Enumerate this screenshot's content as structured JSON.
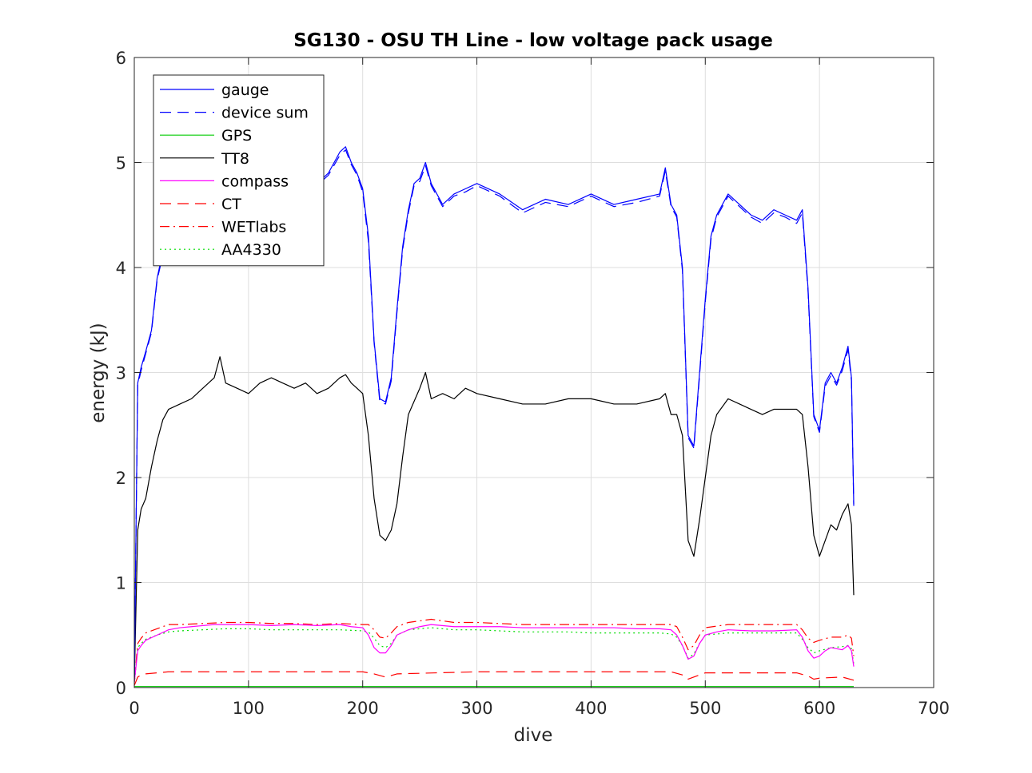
{
  "chart_data": {
    "type": "line",
    "title": "SG130 - OSU TH Line - low voltage pack usage",
    "xlabel": "dive",
    "ylabel": "energy (kJ)",
    "xlim": [
      0,
      700
    ],
    "ylim": [
      0,
      6
    ],
    "xticks": [
      0,
      100,
      200,
      300,
      400,
      500,
      600,
      700
    ],
    "yticks": [
      0,
      1,
      2,
      3,
      4,
      5,
      6
    ],
    "xtick_labels": [
      "0",
      "100",
      "200",
      "300",
      "400",
      "500",
      "600",
      "700"
    ],
    "ytick_labels": [
      "0",
      "1",
      "2",
      "3",
      "4",
      "5",
      "6"
    ],
    "grid": true,
    "legend_position": "top-left",
    "series": [
      {
        "name": "gauge",
        "color": "#0000ff",
        "dash": "solid",
        "x": [
          0,
          3,
          6,
          10,
          15,
          20,
          25,
          30,
          40,
          50,
          60,
          70,
          80,
          90,
          100,
          110,
          120,
          130,
          140,
          150,
          160,
          170,
          180,
          185,
          190,
          195,
          200,
          205,
          210,
          215,
          220,
          225,
          230,
          235,
          240,
          245,
          250,
          255,
          260,
          270,
          280,
          290,
          300,
          320,
          340,
          360,
          380,
          400,
          420,
          440,
          460,
          465,
          470,
          475,
          480,
          485,
          490,
          495,
          500,
          505,
          510,
          520,
          530,
          540,
          550,
          560,
          570,
          580,
          585,
          590,
          595,
          600,
          605,
          610,
          615,
          620,
          625,
          628,
          630
        ],
        "y": [
          0.1,
          2.9,
          3.05,
          3.2,
          3.4,
          3.9,
          4.15,
          4.35,
          4.45,
          4.5,
          4.6,
          4.75,
          4.7,
          4.6,
          4.65,
          4.75,
          4.7,
          4.6,
          4.7,
          4.65,
          4.8,
          4.9,
          5.1,
          5.15,
          5.0,
          4.9,
          4.75,
          4.3,
          3.3,
          2.75,
          2.72,
          2.95,
          3.6,
          4.2,
          4.55,
          4.8,
          4.85,
          5.0,
          4.8,
          4.6,
          4.7,
          4.75,
          4.8,
          4.7,
          4.55,
          4.65,
          4.6,
          4.7,
          4.6,
          4.65,
          4.7,
          4.95,
          4.6,
          4.5,
          4.0,
          2.4,
          2.3,
          3.0,
          3.7,
          4.3,
          4.5,
          4.7,
          4.6,
          4.5,
          4.45,
          4.55,
          4.5,
          4.45,
          4.55,
          3.8,
          2.6,
          2.45,
          2.9,
          3.0,
          2.9,
          3.05,
          3.25,
          2.95,
          1.75
        ]
      },
      {
        "name": "device sum",
        "color": "#0000ff",
        "dash": "long-dash",
        "x": [
          0,
          3,
          6,
          10,
          15,
          20,
          25,
          30,
          40,
          50,
          60,
          70,
          80,
          90,
          100,
          110,
          120,
          130,
          140,
          150,
          160,
          170,
          180,
          185,
          190,
          195,
          200,
          205,
          210,
          215,
          220,
          225,
          230,
          235,
          240,
          245,
          250,
          255,
          260,
          270,
          280,
          290,
          300,
          320,
          340,
          360,
          380,
          400,
          420,
          440,
          460,
          465,
          470,
          475,
          480,
          485,
          490,
          495,
          500,
          505,
          510,
          520,
          530,
          540,
          550,
          560,
          570,
          580,
          585,
          590,
          595,
          600,
          605,
          610,
          615,
          620,
          625,
          628,
          630
        ],
        "y": [
          0.1,
          2.88,
          3.02,
          3.18,
          3.38,
          3.88,
          4.12,
          4.33,
          4.43,
          4.48,
          4.58,
          4.72,
          4.68,
          4.58,
          4.62,
          4.72,
          4.68,
          4.58,
          4.68,
          4.62,
          4.78,
          4.88,
          5.07,
          5.12,
          4.98,
          4.88,
          4.72,
          4.25,
          3.28,
          2.72,
          2.7,
          2.92,
          3.57,
          4.17,
          4.52,
          4.78,
          4.82,
          4.97,
          4.78,
          4.58,
          4.68,
          4.72,
          4.78,
          4.68,
          4.52,
          4.62,
          4.58,
          4.68,
          4.58,
          4.62,
          4.68,
          4.92,
          4.58,
          4.48,
          3.97,
          2.38,
          2.28,
          2.97,
          3.67,
          4.27,
          4.48,
          4.68,
          4.58,
          4.48,
          4.42,
          4.52,
          4.48,
          4.42,
          4.52,
          3.77,
          2.58,
          2.43,
          2.87,
          2.97,
          2.88,
          3.02,
          3.22,
          2.92,
          1.73
        ]
      },
      {
        "name": "GPS",
        "color": "#00cc00",
        "dash": "solid",
        "x": [
          0,
          100,
          200,
          300,
          400,
          500,
          600,
          630
        ],
        "y": [
          0.01,
          0.01,
          0.01,
          0.01,
          0.01,
          0.01,
          0.01,
          0.01
        ]
      },
      {
        "name": "TT8",
        "color": "#000000",
        "dash": "solid",
        "x": [
          0,
          3,
          6,
          10,
          15,
          20,
          25,
          30,
          40,
          50,
          60,
          70,
          75,
          80,
          90,
          100,
          110,
          120,
          130,
          140,
          150,
          160,
          170,
          180,
          185,
          190,
          195,
          200,
          205,
          210,
          215,
          220,
          225,
          230,
          235,
          240,
          250,
          255,
          260,
          270,
          280,
          290,
          300,
          320,
          340,
          360,
          380,
          400,
          420,
          440,
          460,
          465,
          470,
          475,
          480,
          485,
          490,
          495,
          500,
          505,
          510,
          520,
          530,
          540,
          550,
          560,
          570,
          580,
          585,
          590,
          595,
          600,
          605,
          610,
          615,
          620,
          625,
          628,
          630
        ],
        "y": [
          0.05,
          1.5,
          1.7,
          1.8,
          2.1,
          2.35,
          2.55,
          2.65,
          2.7,
          2.75,
          2.85,
          2.95,
          3.15,
          2.9,
          2.85,
          2.8,
          2.9,
          2.95,
          2.9,
          2.85,
          2.9,
          2.8,
          2.85,
          2.95,
          2.98,
          2.9,
          2.85,
          2.8,
          2.4,
          1.8,
          1.45,
          1.4,
          1.5,
          1.75,
          2.2,
          2.6,
          2.85,
          3.0,
          2.75,
          2.8,
          2.75,
          2.85,
          2.8,
          2.75,
          2.7,
          2.7,
          2.75,
          2.75,
          2.7,
          2.7,
          2.75,
          2.8,
          2.6,
          2.6,
          2.4,
          1.4,
          1.25,
          1.6,
          2.0,
          2.4,
          2.6,
          2.75,
          2.7,
          2.65,
          2.6,
          2.65,
          2.65,
          2.65,
          2.6,
          2.1,
          1.45,
          1.25,
          1.4,
          1.55,
          1.5,
          1.65,
          1.75,
          1.55,
          0.88
        ]
      },
      {
        "name": "compass",
        "color": "#ff00ff",
        "dash": "solid",
        "x": [
          0,
          3,
          6,
          10,
          20,
          30,
          40,
          50,
          60,
          70,
          80,
          100,
          120,
          140,
          160,
          180,
          190,
          200,
          205,
          210,
          215,
          220,
          225,
          230,
          240,
          250,
          260,
          280,
          300,
          320,
          340,
          360,
          380,
          400,
          420,
          440,
          460,
          470,
          475,
          480,
          485,
          490,
          495,
          500,
          510,
          520,
          540,
          560,
          580,
          585,
          590,
          595,
          600,
          605,
          610,
          620,
          625,
          628,
          630
        ],
        "y": [
          0.05,
          0.35,
          0.4,
          0.45,
          0.5,
          0.55,
          0.57,
          0.58,
          0.59,
          0.6,
          0.6,
          0.6,
          0.59,
          0.6,
          0.59,
          0.6,
          0.58,
          0.57,
          0.5,
          0.38,
          0.33,
          0.33,
          0.4,
          0.5,
          0.55,
          0.58,
          0.6,
          0.58,
          0.58,
          0.58,
          0.57,
          0.57,
          0.57,
          0.57,
          0.57,
          0.56,
          0.56,
          0.55,
          0.5,
          0.4,
          0.27,
          0.3,
          0.42,
          0.5,
          0.53,
          0.55,
          0.54,
          0.54,
          0.55,
          0.48,
          0.35,
          0.28,
          0.3,
          0.35,
          0.38,
          0.36,
          0.4,
          0.35,
          0.2
        ]
      },
      {
        "name": "CT",
        "color": "#ff0000",
        "dash": "long-dash",
        "x": [
          0,
          3,
          6,
          10,
          20,
          30,
          50,
          100,
          150,
          200,
          210,
          220,
          230,
          300,
          400,
          470,
          480,
          485,
          490,
          500,
          580,
          590,
          595,
          600,
          620,
          630
        ],
        "y": [
          0.02,
          0.1,
          0.12,
          0.13,
          0.14,
          0.15,
          0.15,
          0.15,
          0.15,
          0.15,
          0.13,
          0.1,
          0.13,
          0.15,
          0.15,
          0.15,
          0.12,
          0.08,
          0.1,
          0.14,
          0.14,
          0.11,
          0.08,
          0.09,
          0.1,
          0.07
        ]
      },
      {
        "name": "WETlabs",
        "color": "#ff0000",
        "dash": "dash-dot",
        "x": [
          0,
          3,
          6,
          10,
          20,
          30,
          40,
          60,
          80,
          100,
          120,
          140,
          160,
          180,
          200,
          205,
          210,
          215,
          220,
          225,
          230,
          240,
          260,
          280,
          300,
          320,
          340,
          360,
          380,
          400,
          420,
          440,
          460,
          470,
          475,
          480,
          485,
          490,
          495,
          500,
          520,
          540,
          560,
          580,
          585,
          590,
          595,
          600,
          610,
          620,
          625,
          628,
          630
        ],
        "y": [
          0.05,
          0.42,
          0.47,
          0.52,
          0.56,
          0.6,
          0.6,
          0.61,
          0.62,
          0.62,
          0.61,
          0.61,
          0.6,
          0.61,
          0.6,
          0.6,
          0.55,
          0.48,
          0.47,
          0.52,
          0.58,
          0.62,
          0.65,
          0.62,
          0.62,
          0.61,
          0.6,
          0.6,
          0.6,
          0.6,
          0.6,
          0.6,
          0.6,
          0.6,
          0.58,
          0.48,
          0.36,
          0.4,
          0.5,
          0.57,
          0.6,
          0.6,
          0.6,
          0.6,
          0.55,
          0.47,
          0.43,
          0.45,
          0.48,
          0.48,
          0.5,
          0.47,
          0.3
        ]
      },
      {
        "name": "AA4330",
        "color": "#00dd00",
        "dash": "dotted",
        "x": [
          0,
          3,
          6,
          10,
          20,
          30,
          40,
          60,
          80,
          100,
          120,
          140,
          160,
          180,
          200,
          205,
          210,
          215,
          220,
          225,
          230,
          240,
          260,
          280,
          300,
          320,
          340,
          360,
          380,
          400,
          420,
          440,
          460,
          470,
          475,
          480,
          485,
          490,
          495,
          500,
          520,
          540,
          560,
          580,
          585,
          590,
          595,
          600,
          610,
          620,
          625,
          628,
          630
        ],
        "y": [
          0.03,
          0.38,
          0.42,
          0.46,
          0.5,
          0.53,
          0.54,
          0.55,
          0.56,
          0.56,
          0.55,
          0.55,
          0.55,
          0.55,
          0.54,
          0.53,
          0.47,
          0.4,
          0.38,
          0.42,
          0.5,
          0.55,
          0.57,
          0.55,
          0.55,
          0.54,
          0.53,
          0.53,
          0.53,
          0.52,
          0.52,
          0.52,
          0.52,
          0.51,
          0.48,
          0.4,
          0.28,
          0.32,
          0.42,
          0.5,
          0.52,
          0.52,
          0.52,
          0.52,
          0.46,
          0.38,
          0.33,
          0.35,
          0.38,
          0.39,
          0.4,
          0.37,
          0.22
        ]
      }
    ]
  }
}
